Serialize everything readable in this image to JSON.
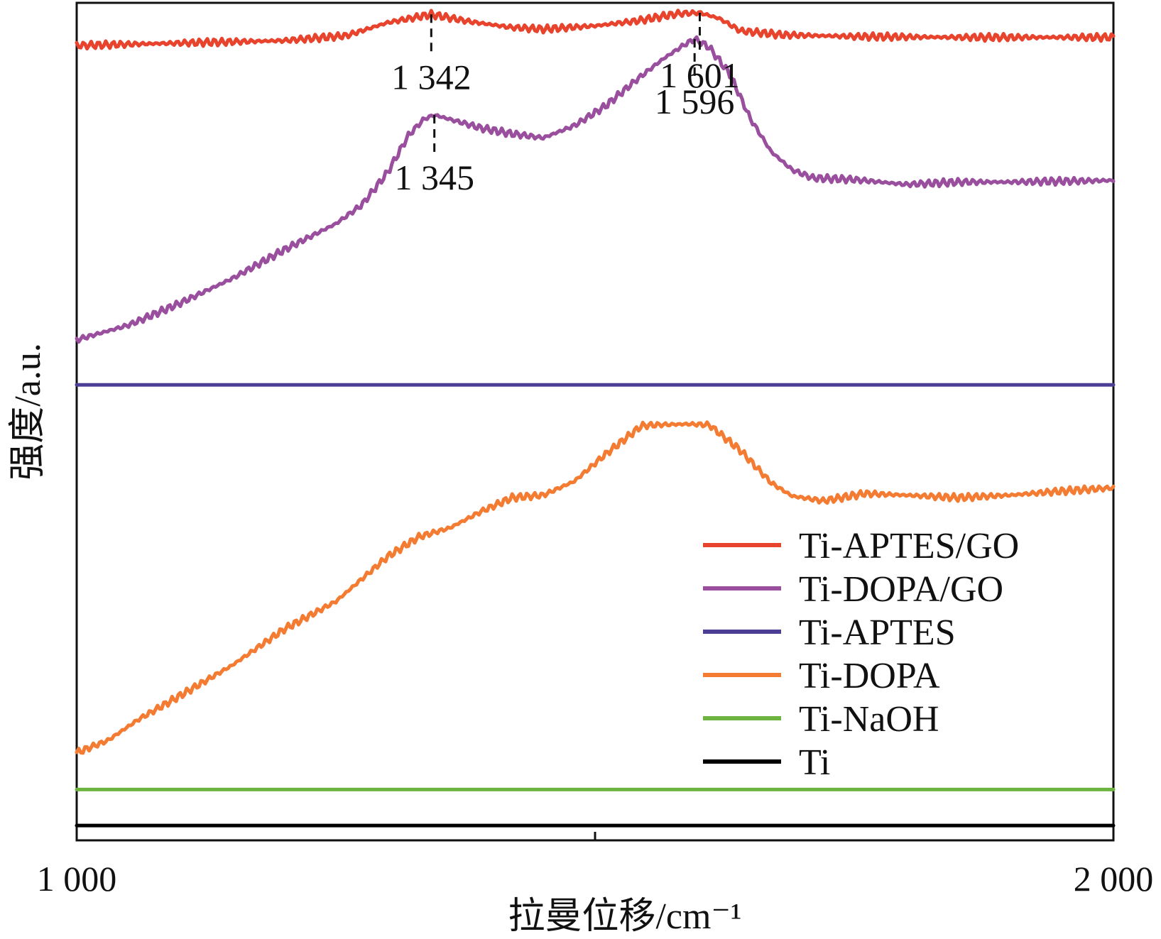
{
  "chart_data": {
    "type": "line",
    "title": "",
    "xlabel": "拉曼位移/cm⁻¹",
    "ylabel": "强度/a.u.",
    "xlim": [
      1000,
      2000
    ],
    "ylim": [
      0,
      100
    ],
    "x_ticks": [
      1000,
      1500,
      2000
    ],
    "x_tick_labels": [
      "1 000",
      "",
      "2 000"
    ],
    "grid": false,
    "legend_position": "bottom-right",
    "series": [
      {
        "name": "Ti-APTES/GO",
        "color": "#e8432d",
        "points": [
          [
            1000,
            96.0
          ],
          [
            1100,
            96.3
          ],
          [
            1200,
            96.6
          ],
          [
            1260,
            97.2
          ],
          [
            1300,
            98.8
          ],
          [
            1342,
            99.8
          ],
          [
            1380,
            98.9
          ],
          [
            1420,
            98.2
          ],
          [
            1450,
            98.0
          ],
          [
            1500,
            98.4
          ],
          [
            1540,
            99.0
          ],
          [
            1580,
            99.9
          ],
          [
            1601,
            100.0
          ],
          [
            1620,
            99.3
          ],
          [
            1640,
            97.8
          ],
          [
            1680,
            97.3
          ],
          [
            1750,
            97.1
          ],
          [
            1850,
            97.0
          ],
          [
            2000,
            97.0
          ]
        ]
      },
      {
        "name": "Ti-DOPA/GO",
        "color": "#9a4f9e",
        "points": [
          [
            1000,
            60.0
          ],
          [
            1050,
            61.8
          ],
          [
            1100,
            64.5
          ],
          [
            1150,
            67.5
          ],
          [
            1200,
            71.0
          ],
          [
            1250,
            74.2
          ],
          [
            1275,
            76.5
          ],
          [
            1300,
            80.5
          ],
          [
            1320,
            85.0
          ],
          [
            1335,
            87.0
          ],
          [
            1345,
            87.5
          ],
          [
            1365,
            86.8
          ],
          [
            1390,
            85.9
          ],
          [
            1420,
            85.2
          ],
          [
            1450,
            84.7
          ],
          [
            1480,
            86.2
          ],
          [
            1510,
            88.6
          ],
          [
            1540,
            91.8
          ],
          [
            1565,
            94.3
          ],
          [
            1585,
            96.0
          ],
          [
            1596,
            96.8
          ],
          [
            1610,
            95.8
          ],
          [
            1630,
            92.5
          ],
          [
            1650,
            87.0
          ],
          [
            1670,
            83.0
          ],
          [
            1690,
            80.8
          ],
          [
            1710,
            79.8
          ],
          [
            1750,
            79.6
          ],
          [
            1800,
            79.0
          ],
          [
            1850,
            79.3
          ],
          [
            1900,
            79.3
          ],
          [
            1950,
            79.4
          ],
          [
            2000,
            79.5
          ]
        ]
      },
      {
        "name": "Ti-APTES",
        "color": "#4b3e94",
        "points": [
          [
            1000,
            54.5
          ],
          [
            2000,
            54.5
          ]
        ]
      },
      {
        "name": "Ti-DOPA",
        "color": "#f47b32",
        "points": [
          [
            1000,
            9.5
          ],
          [
            1030,
            11.0
          ],
          [
            1060,
            13.6
          ],
          [
            1100,
            16.5
          ],
          [
            1150,
            20.2
          ],
          [
            1200,
            24.6
          ],
          [
            1250,
            28.0
          ],
          [
            1300,
            33.5
          ],
          [
            1330,
            35.9
          ],
          [
            1360,
            37.0
          ],
          [
            1390,
            39.0
          ],
          [
            1420,
            40.7
          ],
          [
            1450,
            41.0
          ],
          [
            1480,
            42.7
          ],
          [
            1510,
            46.0
          ],
          [
            1530,
            48.0
          ],
          [
            1545,
            49.5
          ],
          [
            1560,
            49.6
          ],
          [
            1590,
            49.7
          ],
          [
            1610,
            49.6
          ],
          [
            1640,
            46.5
          ],
          [
            1670,
            42.5
          ],
          [
            1690,
            40.9
          ],
          [
            1720,
            40.3
          ],
          [
            1760,
            41.2
          ],
          [
            1800,
            41.0
          ],
          [
            1850,
            40.7
          ],
          [
            1900,
            41.0
          ],
          [
            1950,
            41.5
          ],
          [
            2000,
            41.9
          ]
        ]
      },
      {
        "name": "Ti-NaOH",
        "color": "#6db33f",
        "points": [
          [
            1000,
            5.0
          ],
          [
            2000,
            5.0
          ]
        ]
      },
      {
        "name": "Ti",
        "color": "#000000",
        "points": [
          [
            1000,
            0.6
          ],
          [
            2000,
            0.6
          ]
        ]
      }
    ],
    "annotations": [
      {
        "label": "1 342",
        "x": 1342,
        "series": "Ti-APTES/GO",
        "side": "below"
      },
      {
        "label": "1 601",
        "x": 1601,
        "series": "Ti-APTES/GO",
        "side": "below"
      },
      {
        "label": "1 596",
        "x": 1596,
        "series": "Ti-DOPA/GO",
        "side": "below"
      },
      {
        "label": "1 345",
        "x": 1345,
        "series": "Ti-DOPA/GO",
        "side": "below"
      }
    ]
  }
}
